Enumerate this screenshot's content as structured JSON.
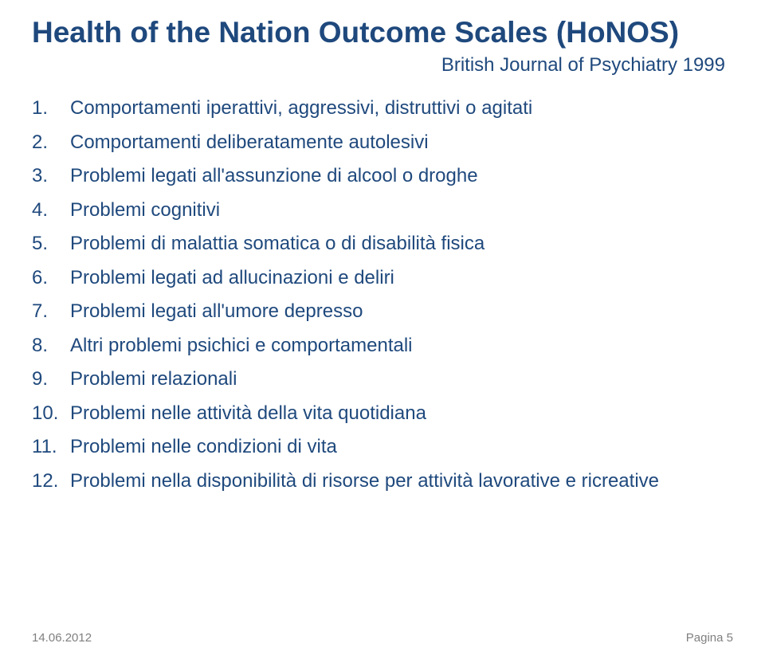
{
  "title": "Health of the Nation Outcome Scales (HoNOS)",
  "subtitle": "British Journal of Psychiatry 1999",
  "items": [
    {
      "n": "1.",
      "text": "Comportamenti iperattivi, aggressivi, distruttivi o agitati"
    },
    {
      "n": "2.",
      "text": "Comportamenti deliberatamente autolesivi"
    },
    {
      "n": "3.",
      "text": "Problemi legati all'assunzione di alcool o droghe"
    },
    {
      "n": "4.",
      "text": "Problemi cognitivi"
    },
    {
      "n": "5.",
      "text": "Problemi di malattia somatica o di disabilità fisica"
    },
    {
      "n": "6.",
      "text": "Problemi legati ad allucinazioni e deliri"
    },
    {
      "n": "7.",
      "text": "Problemi legati all'umore depresso"
    },
    {
      "n": "8.",
      "text": "Altri problemi psichici e comportamentali"
    },
    {
      "n": "9.",
      "text": "Problemi relazionali"
    },
    {
      "n": "10.",
      "text": "Problemi nelle attività della vita quotidiana"
    },
    {
      "n": "11.",
      "text": "Problemi nelle condizioni di vita"
    },
    {
      "n": "12.",
      "text": "Problemi nella disponibilità di risorse per attività lavorative e ricreative"
    }
  ],
  "footer": {
    "date": "14.06.2012",
    "page": "Pagina 5"
  },
  "colors": {
    "primary": "#1f497d",
    "footer": "#808080",
    "background": "#ffffff"
  }
}
